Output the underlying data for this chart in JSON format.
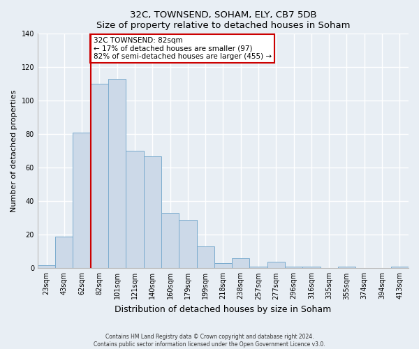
{
  "title": "32C, TOWNSEND, SOHAM, ELY, CB7 5DB",
  "subtitle": "Size of property relative to detached houses in Soham",
  "xlabel": "Distribution of detached houses by size in Soham",
  "ylabel": "Number of detached properties",
  "bar_color": "#ccd9e8",
  "bar_edge_color": "#7aabce",
  "bin_labels": [
    "23sqm",
    "43sqm",
    "62sqm",
    "82sqm",
    "101sqm",
    "121sqm",
    "140sqm",
    "160sqm",
    "179sqm",
    "199sqm",
    "218sqm",
    "238sqm",
    "257sqm",
    "277sqm",
    "296sqm",
    "316sqm",
    "335sqm",
    "355sqm",
    "374sqm",
    "394sqm",
    "413sqm"
  ],
  "bar_values": [
    2,
    19,
    81,
    110,
    113,
    70,
    67,
    33,
    29,
    13,
    3,
    6,
    1,
    4,
    1,
    1,
    0,
    1,
    0,
    0,
    1
  ],
  "ylim": [
    0,
    140
  ],
  "yticks": [
    0,
    20,
    40,
    60,
    80,
    100,
    120,
    140
  ],
  "marker_label_line1": "32C TOWNSEND: 82sqm",
  "marker_label_line2": "← 17% of detached houses are smaller (97)",
  "marker_label_line3": "82% of semi-detached houses are larger (455) →",
  "marker_color": "#cc0000",
  "box_edge_color": "#cc0000",
  "footnote1": "Contains HM Land Registry data © Crown copyright and database right 2024.",
  "footnote2": "Contains public sector information licensed under the Open Government Licence v3.0.",
  "background_color": "#e8eef4",
  "grid_color": "#ffffff",
  "spine_color": "#bbbbbb"
}
